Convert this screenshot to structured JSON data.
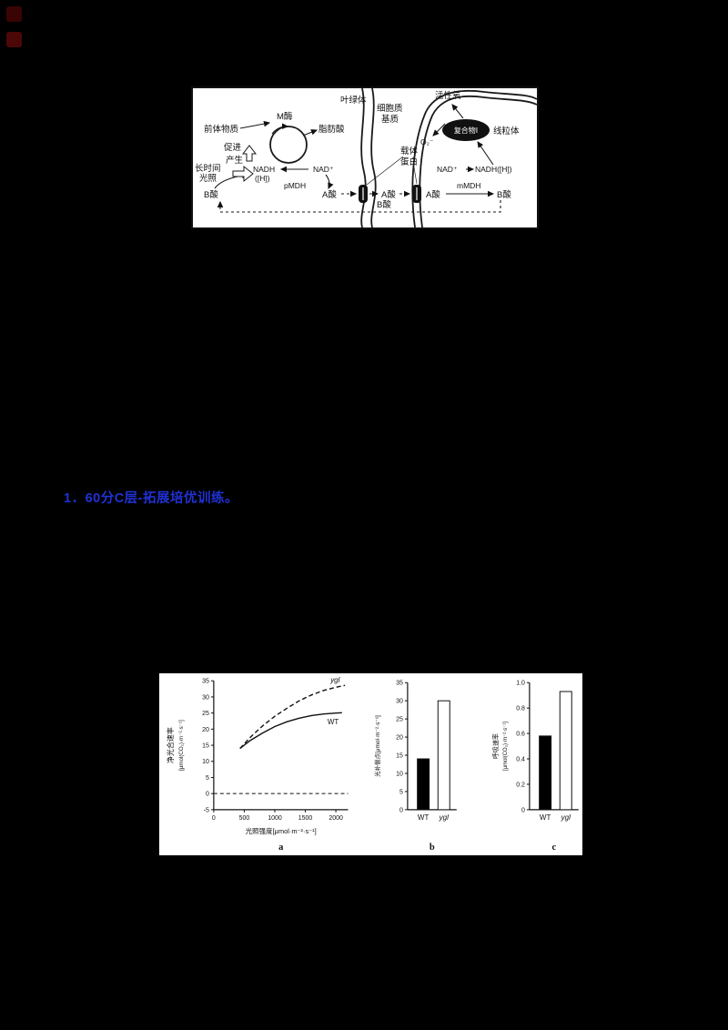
{
  "page": {
    "background": "#000000"
  },
  "heading": {
    "text": "1．60分C层-拓展培优训练。",
    "color": "#2031d4"
  },
  "diagram": {
    "chloroplast": "叶绿体",
    "cytosol1": "细胞质",
    "cytosol2": "基质",
    "ros": "活性氧",
    "mitochondrion": "线粒体",
    "complex1": "复合物Ⅰ",
    "superoxide": "O₂⁻",
    "precursor": "前体物质",
    "m_enzyme": "M酶",
    "fatty_acid": "脂肪酸",
    "promote": "促进",
    "produce": "产生",
    "long_light1": "长时间",
    "long_light2": "光照",
    "nadh_l1": "NADH",
    "nadh_l2": "([H])",
    "nad_l": "NAD⁺",
    "pmdh": "pMDH",
    "a_acid_l": "A酸",
    "b_acid_l": "B酸",
    "carrier1": "载体",
    "carrier2": "蛋白",
    "a_acid_m": "A酸",
    "a_acid_mt": "A酸",
    "nad_r": "NAD⁺",
    "nadh_r": "NADH([H])",
    "mmdh": "mMDH",
    "b_acid_r": "B酸",
    "b_acid_btm": "B酸"
  },
  "chart_data": [
    {
      "type": "line",
      "panel_label": "a",
      "xlabel": "光照强度[μmol·m⁻²·s⁻¹]",
      "ylabel": "净光合速率",
      "ylabel_units": "[μmol(CO₂)·m⁻²·s⁻¹]",
      "xlim": [
        0,
        2200
      ],
      "ylim": [
        -5,
        35
      ],
      "xticks": [
        0,
        500,
        1000,
        1500,
        2000
      ],
      "yticks": [
        -5,
        0,
        5,
        10,
        15,
        20,
        25,
        30,
        35
      ],
      "grid": false,
      "legend_position": "inline",
      "reference_line_y": 0,
      "series": [
        {
          "name": "ygl",
          "italic": true,
          "style": "dashed",
          "label_dx": -16,
          "label_dy": -3,
          "x": [
            430,
            600,
            800,
            1000,
            1200,
            1400,
            1600,
            1800,
            2000,
            2150
          ],
          "y": [
            14,
            17.5,
            21,
            24,
            26.5,
            28.8,
            30.6,
            32,
            33,
            33.6
          ]
        },
        {
          "name": "WT",
          "italic": false,
          "style": "solid",
          "label_dx": -16,
          "label_dy": 13,
          "x": [
            430,
            600,
            800,
            1000,
            1200,
            1400,
            1600,
            1800,
            2000,
            2100
          ],
          "y": [
            14,
            16.5,
            18.8,
            20.8,
            22.3,
            23.4,
            24.2,
            24.7,
            25,
            25.1
          ]
        }
      ]
    },
    {
      "type": "bar",
      "panel_label": "b",
      "ylabel": "光补偿点[μmol·m⁻²·s⁻¹]",
      "categories": [
        "WT",
        "ygl"
      ],
      "categories_italic": [
        false,
        true
      ],
      "values": [
        14,
        30
      ],
      "bar_fills": [
        "#000000",
        "#ffffff"
      ],
      "ylim": [
        0,
        35
      ],
      "yticks": [
        0,
        5,
        10,
        15,
        20,
        25,
        30,
        35
      ]
    },
    {
      "type": "bar",
      "panel_label": "c",
      "ylabel": "呼吸速率",
      "ylabel_units": "[μmol(CO₂)·m⁻²·s⁻¹]",
      "categories": [
        "WT",
        "ygl"
      ],
      "categories_italic": [
        false,
        true
      ],
      "values": [
        0.58,
        0.93
      ],
      "bar_fills": [
        "#000000",
        "#ffffff"
      ],
      "ylim": [
        0,
        1.0
      ],
      "yticks": [
        0,
        0.2,
        0.4,
        0.6,
        0.8,
        1.0
      ],
      "ytick_labels": [
        "0",
        "0.2",
        "0.4",
        "0.6",
        "0.8",
        "1.0"
      ]
    }
  ]
}
